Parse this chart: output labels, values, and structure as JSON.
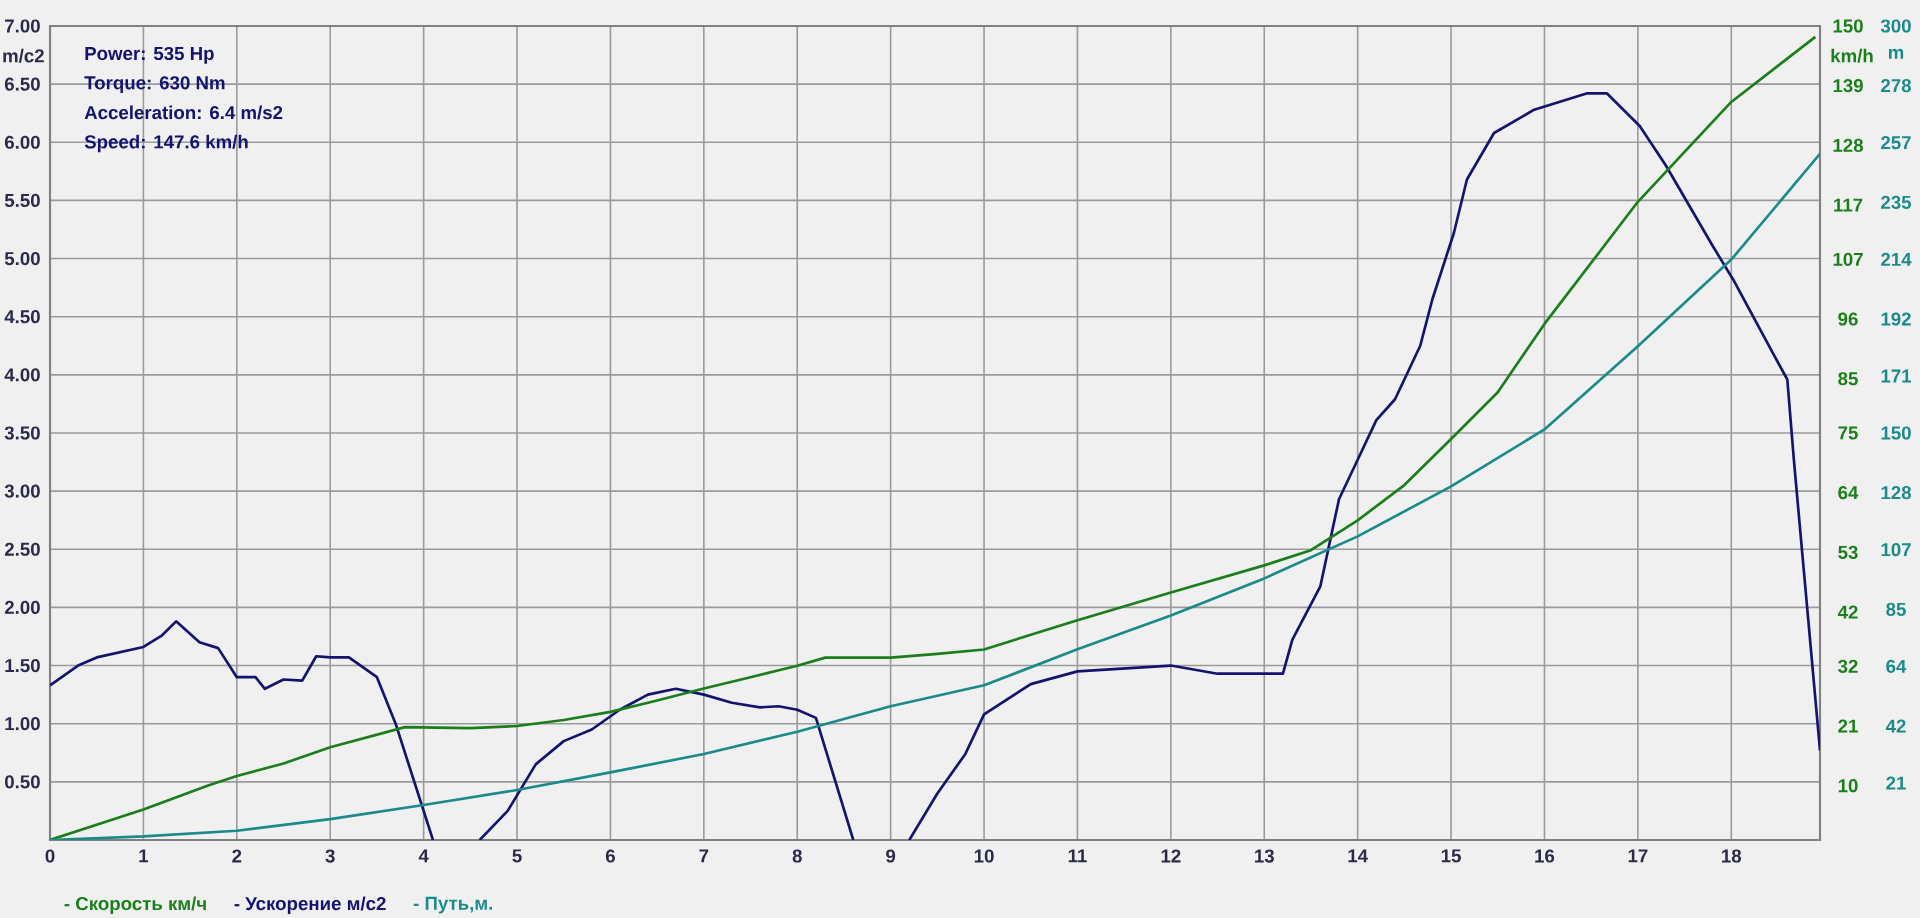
{
  "chart_data": {
    "type": "line",
    "annotations": [
      "Power: 535 Hp",
      "Torque: 630 Nm",
      "Acceleration: 6.4 m/s2",
      "Speed: 147.6 km/h"
    ],
    "ylabel": "m/c2",
    "y2label": "km/h",
    "y3label": "m",
    "xlim": [
      0,
      18.95
    ],
    "xticks": [
      0,
      1,
      2,
      3,
      4,
      5,
      6,
      7,
      8,
      9,
      10,
      11,
      12,
      13,
      14,
      15,
      16,
      17,
      18
    ],
    "ylim": [
      0,
      7
    ],
    "yticks": [
      {
        "value": 0.5,
        "label": "0.50"
      },
      {
        "value": 1,
        "label": "1.00"
      },
      {
        "value": 1.5,
        "label": "1.50"
      },
      {
        "value": 2,
        "label": "2.00"
      },
      {
        "value": 2.5,
        "label": "2.50"
      },
      {
        "value": 3,
        "label": "3.00"
      },
      {
        "value": 3.5,
        "label": "3.50"
      },
      {
        "value": 4,
        "label": "4.00"
      },
      {
        "value": 4.5,
        "label": "4.50"
      },
      {
        "value": 5,
        "label": "5.00"
      },
      {
        "value": 5.5,
        "label": "5.50"
      },
      {
        "value": 6,
        "label": "6.00"
      },
      {
        "value": 6.5,
        "label": "6.50"
      },
      {
        "value": 7,
        "label": "7.00"
      }
    ],
    "y2lim": [
      0,
      150
    ],
    "y2ticks": [
      10,
      21,
      32,
      42,
      53,
      64,
      75,
      85,
      96,
      107,
      117,
      128,
      139,
      150
    ],
    "y3lim": [
      0,
      300
    ],
    "y3ticks": [
      21,
      42,
      64,
      85,
      107,
      128,
      150,
      171,
      192,
      214,
      235,
      257,
      278,
      300
    ],
    "grid": true,
    "legend": "bottom left",
    "series": [
      {
        "name": "- Скорость км/ч",
        "color": "#1a7f1a",
        "axis": "y2",
        "x": [
          0,
          1,
          1.7,
          2,
          2.5,
          3,
          3.8,
          4.5,
          5,
          5.5,
          6,
          6.5,
          7,
          7.5,
          8,
          8.3,
          9,
          9.5,
          10,
          11,
          12,
          13,
          13.5,
          14,
          14.5,
          15,
          15.5,
          16,
          17,
          18,
          18.9
        ],
        "values": [
          0,
          5.6,
          10.1,
          11.8,
          14.1,
          17.1,
          20.8,
          20.6,
          21.0,
          22.1,
          23.6,
          25.7,
          27.9,
          30.0,
          32.1,
          33.6,
          33.6,
          34.3,
          35.1,
          40.5,
          45.6,
          50.6,
          53.4,
          58.9,
          65.4,
          73.9,
          82.5,
          95.1,
          117.6,
          136,
          148
        ]
      },
      {
        "name": "- Ускорение м/с2",
        "color": "#14146e",
        "axis": "y",
        "x": [
          0,
          0.3,
          0.5,
          1.0,
          1.2,
          1.35,
          1.6,
          1.8,
          2.0,
          2.2,
          2.3,
          2.5,
          2.7,
          2.85,
          3.0,
          3.2,
          3.5,
          3.7,
          4.1,
          4.3,
          4.6,
          4.9,
          5.2,
          5.5,
          5.8,
          6.1,
          6.4,
          6.7,
          7.0,
          7.3,
          7.6,
          7.8,
          8.0,
          8.2,
          8.6,
          8.9,
          9.2,
          9.5,
          9.8,
          10,
          10.5,
          11,
          12,
          12.5,
          13.2,
          13.3,
          13.6,
          13.8,
          14.0,
          14.2,
          14.4,
          14.67,
          14.8,
          15.03,
          15.17,
          15.46,
          15.89,
          16.45,
          16.67,
          17.02,
          17.3,
          17.8,
          18.02,
          18.45,
          18.6,
          18.67,
          18.95
        ],
        "values": [
          1.33,
          1.5,
          1.57,
          1.66,
          1.76,
          1.88,
          1.7,
          1.65,
          1.4,
          1.4,
          1.3,
          1.38,
          1.37,
          1.58,
          1.57,
          1.57,
          1.4,
          1.0,
          0,
          null,
          0,
          0.25,
          0.65,
          0.85,
          0.95,
          1.12,
          1.25,
          1.3,
          1.25,
          1.18,
          1.14,
          1.15,
          1.12,
          1.05,
          0,
          null,
          0,
          0.4,
          0.74,
          1.08,
          1.34,
          1.45,
          1.5,
          1.43,
          1.43,
          1.72,
          2.18,
          2.93,
          3.27,
          3.61,
          3.79,
          4.25,
          4.65,
          5.22,
          5.68,
          6.08,
          6.28,
          6.42,
          6.42,
          6.14,
          5.8,
          5.11,
          4.82,
          4.18,
          3.96,
          3.27,
          0.77
        ]
      },
      {
        "name": "- Путь,м.",
        "color": "#1a8a8a",
        "axis": "y3",
        "x": [
          0,
          1,
          2,
          3,
          4,
          5,
          6,
          7,
          8,
          9,
          10,
          11,
          12,
          13,
          14,
          15,
          16,
          17,
          18,
          18.95
        ],
        "values": [
          0,
          1.3,
          3.4,
          7.7,
          12.9,
          18.4,
          24.9,
          31.7,
          39.9,
          49.3,
          57.0,
          70.3,
          82.7,
          96.4,
          111.9,
          130.3,
          151.3,
          182,
          213.9,
          252.9
        ]
      }
    ]
  }
}
